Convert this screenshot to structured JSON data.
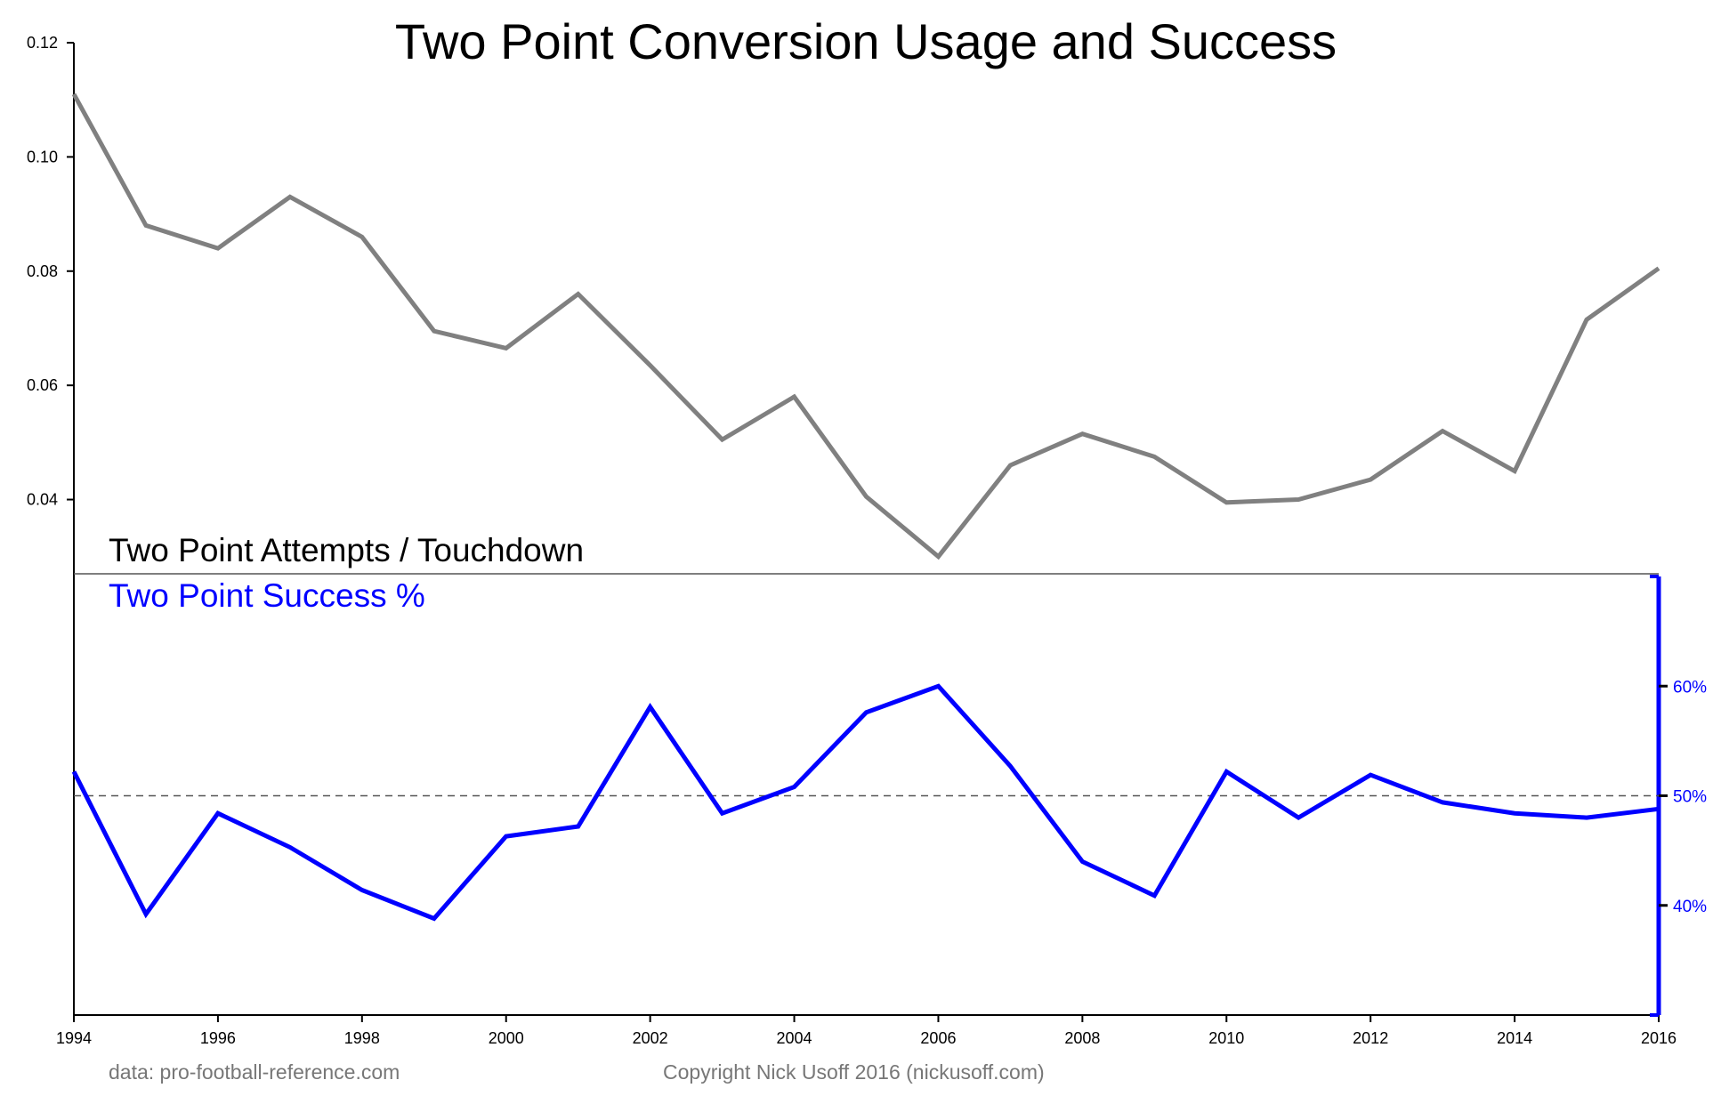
{
  "chart_data": {
    "type": "line",
    "title": "Two Point Conversion Usage and Success",
    "x": [
      1994,
      1995,
      1996,
      1997,
      1998,
      1999,
      2000,
      2001,
      2002,
      2003,
      2004,
      2005,
      2006,
      2007,
      2008,
      2009,
      2010,
      2011,
      2012,
      2013,
      2014,
      2015,
      2016
    ],
    "x_ticks": [
      "1994",
      "1996",
      "1998",
      "2000",
      "2002",
      "2004",
      "2006",
      "2008",
      "2010",
      "2012",
      "2014",
      "2016"
    ],
    "xlim": [
      1994,
      2016
    ],
    "series": [
      {
        "name": "Two Point Attempts / Touchdown",
        "axis": "left",
        "color": "#808080",
        "values": [
          0.111,
          0.088,
          0.084,
          0.093,
          0.086,
          0.0695,
          0.0665,
          0.076,
          0.0635,
          0.0505,
          0.058,
          0.0405,
          0.03,
          0.046,
          0.0515,
          0.0475,
          0.0395,
          0.04,
          0.0435,
          0.052,
          0.045,
          0.0715,
          0.0805
        ]
      },
      {
        "name": "Two Point Success %",
        "axis": "right",
        "color": "#0000ff",
        "values": [
          52.2,
          39.2,
          48.4,
          45.3,
          41.4,
          38.8,
          46.3,
          47.2,
          58.1,
          48.4,
          50.8,
          57.6,
          60.0,
          52.7,
          44.0,
          40.9,
          52.2,
          48.0,
          51.9,
          49.4,
          48.4,
          48.0,
          48.8
        ]
      }
    ],
    "left_axis": {
      "ticks": [
        "0.12",
        "0.10",
        "0.08",
        "0.06",
        "0.04"
      ],
      "tick_values": [
        0.12,
        0.1,
        0.08,
        0.06,
        0.04
      ],
      "ylim": [
        0.027,
        0.12
      ]
    },
    "right_axis": {
      "ticks": [
        "60%",
        "50%",
        "40%"
      ],
      "tick_values": [
        60,
        50,
        40
      ],
      "ylim": [
        30,
        70
      ],
      "color": "#0000ff"
    },
    "reference_line": {
      "value": 50,
      "axis": "right",
      "style": "dashed"
    },
    "grid": false,
    "legend_position": "middle-left",
    "source_note": "data: pro-football-reference.com",
    "copyright": "Copyright Nick Usoff 2016 (nickusoff.com)"
  }
}
